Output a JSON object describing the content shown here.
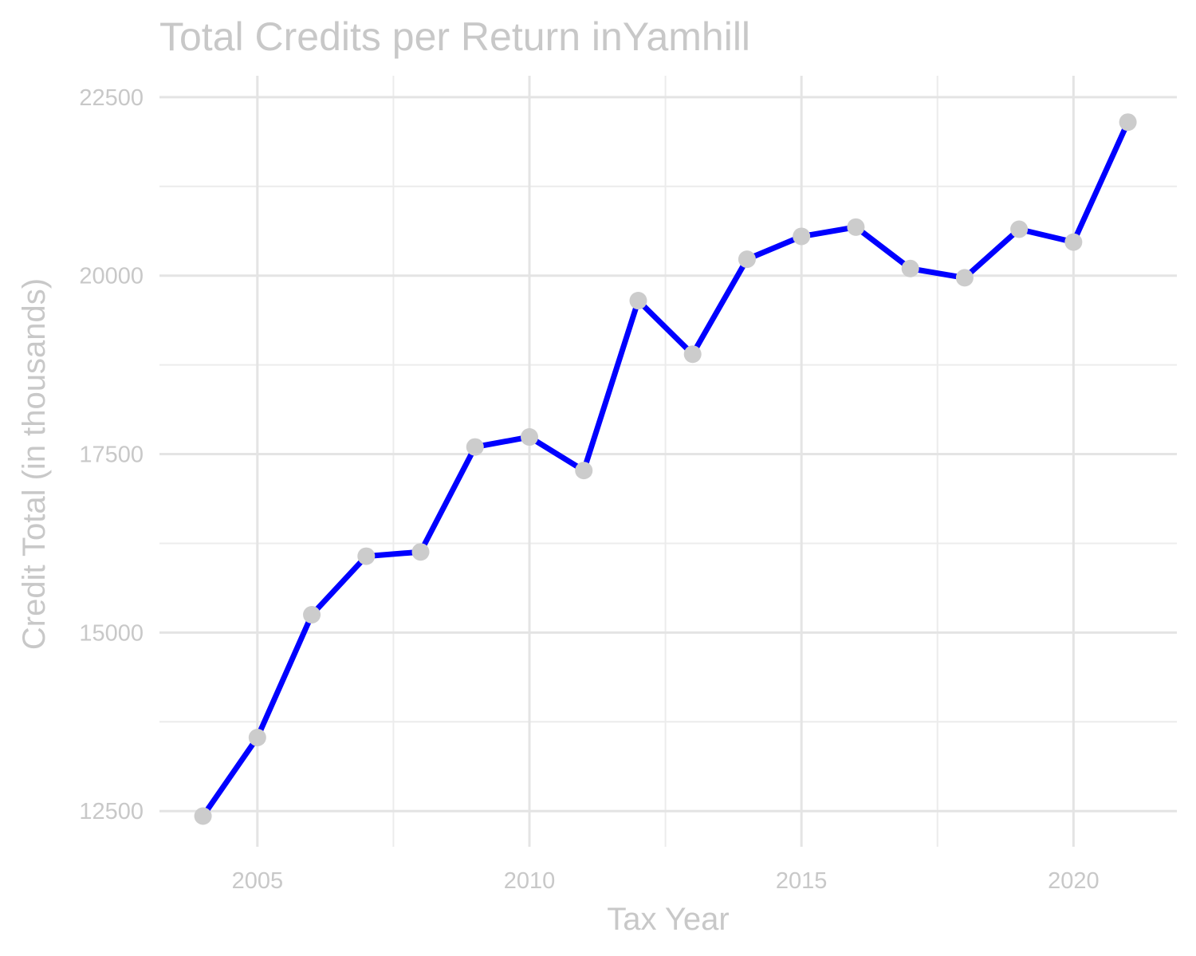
{
  "chart_data": {
    "type": "line",
    "title": "Total Credits per Return inYamhill",
    "xlabel": "Tax Year",
    "ylabel": "Credit Total (in thousands)",
    "xlim": [
      2003.2,
      2021.9
    ],
    "ylim": [
      12000,
      22800
    ],
    "x_ticks": [
      2005,
      2010,
      2015,
      2020
    ],
    "x_minor_ticks": [
      2007.5,
      2012.5,
      2017.5
    ],
    "y_ticks": [
      12500,
      15000,
      17500,
      20000,
      22500
    ],
    "y_minor_ticks": [
      13750,
      16250,
      18750,
      21250
    ],
    "grid": true,
    "legend": "none",
    "line_color": "#0000ff",
    "point_color": "#cccccc",
    "text_color": "#c8c8c8",
    "grid_color": "#e4e4e4",
    "series": [
      {
        "x": [
          2004,
          2005,
          2006,
          2007,
          2008,
          2009,
          2010,
          2011,
          2012,
          2013,
          2014,
          2015,
          2016,
          2017,
          2018,
          2019,
          2020,
          2021
        ],
        "values": [
          12430,
          13530,
          15250,
          16070,
          16130,
          17600,
          17740,
          17270,
          19650,
          18900,
          20230,
          20550,
          20680,
          20100,
          19970,
          20650,
          20470,
          22150
        ]
      }
    ]
  }
}
